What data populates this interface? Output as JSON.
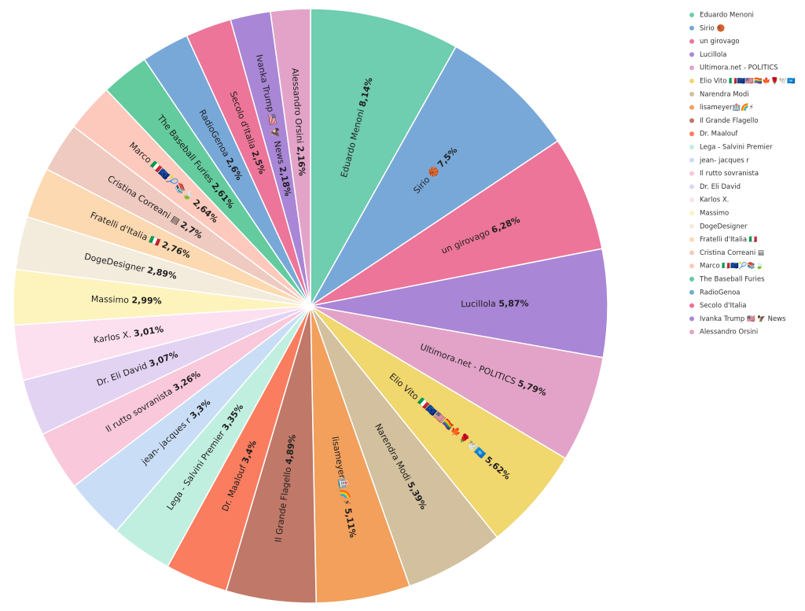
{
  "chart_data": {
    "type": "pie",
    "title": "",
    "legend_position": "right",
    "categories": [
      "Eduardo Menoni",
      "Sirio 🏀",
      "un girovago",
      "Lucillola",
      "Ultimora.net - POLITICS",
      "Elio Vito 🇮🇹🇪🇺🇺🇸🏳️‍🌈🍁🌹🕊️🇺🇳",
      "Narendra Modi",
      "lisameyer🏥🌈⚡",
      "Il Grande Flagello",
      "Dr. Maalouf",
      "Lega - Salvini Premier",
      "jean- jacques r",
      "Il rutto sovranista",
      "Dr. Eli David",
      "Karlos X.",
      "Massimo",
      "DogeDesigner",
      "Fratelli d'Italia 🇮🇹",
      "Cristina Correani ▤",
      "Marco 🇮🇹🇪🇺🎾📚🍃",
      "The Baseball Furies",
      "RadioGenoa",
      "Secolo d'Italia",
      "Ivanka Trump 🇺🇸 🦅 News",
      "Alessandro Orsini"
    ],
    "values": [
      8.14,
      7.5,
      6.28,
      5.87,
      5.79,
      5.62,
      5.39,
      5.11,
      4.89,
      3.4,
      3.35,
      3.3,
      3.26,
      3.07,
      3.01,
      2.99,
      2.89,
      2.76,
      2.7,
      2.64,
      2.61,
      2.6,
      2.5,
      2.18,
      2.16
    ],
    "value_labels": [
      "8,14%",
      "7,5%",
      "6,28%",
      "5,87%",
      "5,79%",
      "5,62%",
      "5,39%",
      "5,11%",
      "4,89%",
      "3,4%",
      "3,35%",
      "3,3%",
      "3,26%",
      "3,07%",
      "3,01%",
      "2,99%",
      "2,89%",
      "2,76%",
      "2,7%",
      "2,64%",
      "2,61%",
      "2,6%",
      "2,5%",
      "2,18%",
      "2,16%"
    ],
    "colors": [
      "#6fcdb0",
      "#78a8d8",
      "#ec7599",
      "#a986d6",
      "#e3a3c8",
      "#f0d76e",
      "#d2c09e",
      "#f2a05c",
      "#c07868",
      "#fb7d5f",
      "#c0efe0",
      "#c9def6",
      "#f9c8da",
      "#e3d3f3",
      "#fde0ef",
      "#fdf3bd",
      "#f3ebdc",
      "#fcd9b0",
      "#efcac0",
      "#fec9bd",
      "#63cb9d",
      "#78a8d8",
      "#ec7599",
      "#a986d6",
      "#e3a3c8"
    ]
  }
}
